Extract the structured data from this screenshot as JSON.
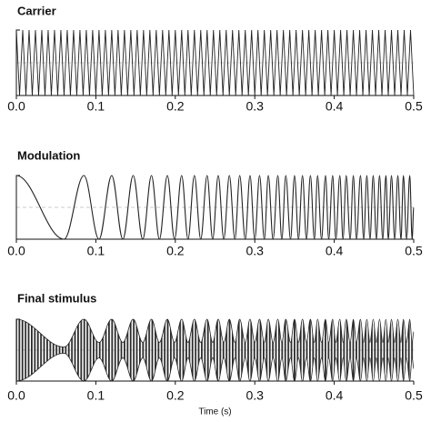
{
  "chart_data": [
    {
      "type": "line",
      "title": "Carrier",
      "x": [
        0,
        0.004,
        0.008,
        0.012,
        0.016,
        0.02,
        0.024,
        0.028,
        0.032,
        0.036,
        0.04,
        0.044,
        0.048,
        0.052,
        0.056,
        0.06,
        0.064,
        0.068,
        0.072,
        0.076,
        0.08,
        0.084,
        0.088,
        0.092,
        0.096,
        0.1,
        0.104,
        0.108,
        0.112,
        0.116,
        0.12,
        0.124,
        0.128,
        0.132,
        0.136,
        0.14,
        0.144,
        0.148,
        0.152,
        0.156,
        0.16,
        0.164,
        0.168,
        0.172,
        0.176,
        0.18,
        0.184,
        0.188,
        0.192,
        0.196,
        0.2,
        0.204,
        0.208,
        0.212,
        0.216,
        0.22,
        0.224,
        0.228,
        0.232,
        0.236,
        0.24,
        0.244,
        0.248,
        0.252,
        0.256,
        0.26,
        0.264,
        0.268,
        0.272,
        0.276,
        0.28,
        0.284,
        0.288,
        0.292,
        0.296,
        0.3,
        0.304,
        0.308,
        0.312,
        0.316,
        0.32,
        0.324,
        0.328,
        0.332,
        0.336,
        0.34,
        0.344,
        0.348,
        0.352,
        0.356,
        0.36,
        0.364,
        0.368,
        0.372,
        0.376,
        0.38,
        0.384,
        0.388,
        0.392,
        0.396,
        0.4,
        0.404,
        0.408,
        0.412,
        0.416,
        0.42,
        0.424,
        0.428,
        0.432,
        0.436,
        0.44,
        0.444,
        0.448,
        0.452,
        0.456,
        0.46,
        0.464,
        0.468,
        0.472,
        0.476,
        0.48,
        0.484,
        0.488,
        0.492,
        0.496,
        0.5
      ],
      "values": [
        1,
        -1,
        1,
        -1,
        1,
        -1,
        1,
        -1,
        1,
        -1,
        1,
        -1,
        1,
        -1,
        1,
        -1,
        1,
        -1,
        1,
        -1,
        1,
        -1,
        1,
        -1,
        1,
        -1,
        1,
        -1,
        1,
        -1,
        1,
        -1,
        1,
        -1,
        1,
        -1,
        1,
        -1,
        1,
        -1,
        1,
        -1,
        1,
        -1,
        1,
        -1,
        1,
        -1,
        1,
        -1,
        1,
        -1,
        1,
        -1,
        1,
        -1,
        1,
        -1,
        1,
        -1,
        1,
        -1,
        1,
        -1,
        1,
        -1,
        1,
        -1,
        1,
        -1,
        1,
        -1,
        1,
        -1,
        1,
        -1,
        1,
        -1,
        1,
        -1,
        1,
        -1,
        1,
        -1,
        1,
        -1,
        1,
        -1,
        1,
        -1,
        1,
        -1,
        1,
        -1,
        1,
        -1,
        1,
        -1,
        1,
        -1,
        1,
        -1,
        1,
        -1,
        1,
        -1,
        1,
        -1,
        1,
        -1,
        1,
        -1,
        1,
        -1,
        1,
        -1,
        1,
        -1,
        1,
        -1,
        1,
        -1,
        1,
        -1,
        1,
        -1
      ],
      "color": "#222222",
      "xlim": [
        0,
        0.5
      ],
      "ylim": [
        -1,
        1
      ],
      "xticks": [
        {
          "value": 0,
          "label": "0.0"
        },
        0.1,
        0.2,
        0.3,
        0.4,
        0.5
      ]
    },
    {
      "type": "smooth-line",
      "title": "Modulation",
      "x": [
        0,
        0.06,
        0.085,
        0.104,
        0.12,
        0.134,
        0.147,
        0.159,
        0.17,
        0.18,
        0.19,
        0.199,
        0.208,
        0.216,
        0.224,
        0.232,
        0.24,
        0.247,
        0.254,
        0.261,
        0.268,
        0.275,
        0.281,
        0.288,
        0.294,
        0.3,
        0.306,
        0.312,
        0.317,
        0.323,
        0.329,
        0.334,
        0.339,
        0.345,
        0.35,
        0.355,
        0.36,
        0.365,
        0.37,
        0.375,
        0.379,
        0.384,
        0.389,
        0.393,
        0.398,
        0.402,
        0.407,
        0.411,
        0.415,
        0.42,
        0.424,
        0.428,
        0.433,
        0.437,
        0.441,
        0.445,
        0.449,
        0.453,
        0.457,
        0.461,
        0.465,
        0.468,
        0.472,
        0.476,
        0.48,
        0.484,
        0.487,
        0.491,
        0.495,
        0.498,
        0.5
      ],
      "values": [
        1,
        -1,
        1,
        -1,
        1,
        -1,
        1,
        -1,
        1,
        -1,
        1,
        -1,
        1,
        -1,
        1,
        -1,
        1,
        -1,
        1,
        -1,
        1,
        -1,
        1,
        -1,
        1,
        -1,
        1,
        -1,
        1,
        -1,
        1,
        -1,
        1,
        -1,
        1,
        -1,
        1,
        -1,
        1,
        -1,
        1,
        -1,
        1,
        -1,
        1,
        -1,
        1,
        -1,
        1,
        -1,
        1,
        -1,
        1,
        -1,
        1,
        -1,
        1,
        -1,
        1,
        -1,
        1,
        -1,
        1,
        -1,
        1,
        -1,
        1,
        -1,
        1,
        -1,
        0
      ],
      "color": "#222222",
      "xlim": [
        0,
        0.5
      ],
      "ylim": [
        -1,
        1
      ],
      "xticks": [
        {
          "value": 0,
          "label": "0.0"
        },
        0.1,
        0.2,
        0.3,
        0.4,
        0.5
      ]
    },
    {
      "type": "envelope",
      "title": "Final stimulus",
      "x_label": "Time (s)",
      "x": [
        0,
        0.06,
        0.085,
        0.104,
        0.12,
        0.134,
        0.147,
        0.159,
        0.17,
        0.18,
        0.19,
        0.199,
        0.208,
        0.216,
        0.224,
        0.232,
        0.24,
        0.247,
        0.254,
        0.261,
        0.268,
        0.275,
        0.281,
        0.288,
        0.294,
        0.3,
        0.306,
        0.312,
        0.317,
        0.323,
        0.329,
        0.334,
        0.339,
        0.345,
        0.35,
        0.355,
        0.36,
        0.365,
        0.37,
        0.375,
        0.379,
        0.384,
        0.389,
        0.393,
        0.398,
        0.402,
        0.407,
        0.411,
        0.415,
        0.42,
        0.424,
        0.428,
        0.433,
        0.437,
        0.441,
        0.445,
        0.449,
        0.453,
        0.457,
        0.461,
        0.465,
        0.468,
        0.472,
        0.476,
        0.48,
        0.484,
        0.487,
        0.491,
        0.495,
        0.498,
        0.5
      ],
      "series": [
        {
          "color": "#222222",
          "values": [
            1,
            0.1,
            1,
            0.25,
            1,
            0.25,
            1,
            0.25,
            1,
            0.25,
            1,
            0.25,
            1,
            0.25,
            1,
            0.25,
            1,
            0.25,
            1,
            0.25,
            1,
            0.25,
            1,
            0.25,
            1,
            0.25,
            1,
            0.25,
            1,
            0.25,
            1,
            0.25,
            1,
            0.25,
            1,
            0.25,
            1,
            0.25,
            1,
            0.25,
            1,
            0.25,
            1,
            0.25,
            1,
            0.25,
            1,
            0.25,
            1,
            0.25,
            1,
            0.25,
            1,
            0.25,
            1,
            0.25,
            1,
            0.25,
            1,
            0.25,
            1,
            0.25,
            1,
            0.25,
            1,
            0.25,
            1,
            0.25,
            1,
            0.25,
            0.6
          ]
        },
        {
          "color": "#222222",
          "values": [
            -1,
            -0.1,
            -1,
            -0.25,
            -1,
            -0.25,
            -1,
            -0.25,
            -1,
            -0.25,
            -1,
            -0.25,
            -1,
            -0.25,
            -1,
            -0.25,
            -1,
            -0.25,
            -1,
            -0.25,
            -1,
            -0.25,
            -1,
            -0.25,
            -1,
            -0.25,
            -1,
            -0.25,
            -1,
            -0.25,
            -1,
            -0.25,
            -1,
            -0.25,
            -1,
            -0.25,
            -1,
            -0.25,
            -1,
            -0.25,
            -1,
            -0.25,
            -1,
            -0.25,
            -1,
            -0.25,
            -1,
            -0.25,
            -1,
            -0.25,
            -1,
            -0.25,
            -1,
            -0.25,
            -1,
            -0.25,
            -1,
            -0.25,
            -1,
            -0.25,
            -1,
            -0.25,
            -1,
            -0.25,
            -1,
            -0.25,
            -1,
            -0.25,
            -1,
            -0.25,
            -0.6
          ]
        }
      ],
      "xlim": [
        0,
        0.5
      ],
      "ylim": [
        -1,
        1
      ],
      "xticks": [
        {
          "value": 0,
          "label": "0.0"
        },
        0.1,
        0.2,
        0.3,
        0.4,
        0.5
      ]
    }
  ]
}
